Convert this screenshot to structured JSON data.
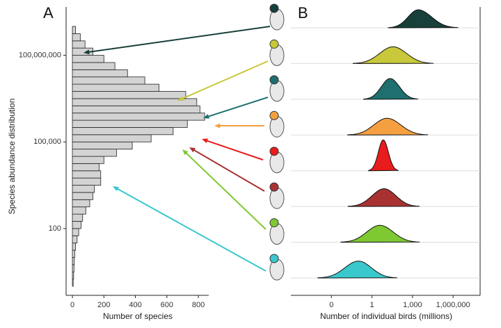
{
  "panels": [
    {
      "label": "A",
      "chart_data": {
        "type": "histogram",
        "orientation": "horizontal",
        "y_scale": "log",
        "x_label": "Number of species",
        "y_label": "Species abundance distribution",
        "bins": [
          1,
          1.78,
          3.16,
          5.62,
          10,
          17.8,
          31.6,
          56.2,
          100,
          178,
          316,
          562,
          1000,
          1780,
          3160,
          5620,
          10000,
          17800,
          31600,
          56200,
          100000,
          178000,
          316000,
          562000,
          1000000,
          1780000,
          3160000,
          5620000,
          10000000,
          17800000,
          31600000,
          56200000,
          100000000,
          178000000,
          316000000,
          562000000,
          1000000000
        ],
        "values": [
          5,
          8,
          10,
          12,
          15,
          20,
          30,
          40,
          55,
          65,
          85,
          110,
          130,
          140,
          180,
          180,
          170,
          200,
          280,
          380,
          500,
          640,
          730,
          840,
          810,
          790,
          720,
          550,
          460,
          350,
          270,
          200,
          130,
          80,
          50,
          20
        ],
        "color": "#d3d3d3",
        "xlim": [
          -40,
          866
        ],
        "xticks": [
          0,
          200,
          400,
          600,
          800
        ],
        "ylim": [
          1,
          1000000000
        ],
        "yticks": [
          100,
          {
            "value": 100000,
            "label": "100,000"
          },
          {
            "value": 100000000,
            "label": "100,000,000"
          }
        ]
      }
    },
    {
      "label": "B",
      "chart_data": {
        "type": "ridgeline",
        "x_scale": "log",
        "x_label": "Number of individual birds (millions)",
        "ridges": [
          {
            "color": "#17403a",
            "min": 16,
            "mode": 2600,
            "max": 2400000
          },
          {
            "color": "#c8c83a",
            "min": 0.04,
            "mode": 36,
            "max": 36000
          },
          {
            "color": "#1f6f6f",
            "min": 0.24,
            "mode": 22,
            "max": 2600
          },
          {
            "color": "#f5a040",
            "min": 0.016,
            "mode": 13,
            "max": 14000
          },
          {
            "color": "#e81c1c",
            "min": 0.56,
            "mode": 6.8,
            "max": 93
          },
          {
            "color": "#a83232",
            "min": 0.017,
            "mode": 7.8,
            "max": 3400
          },
          {
            "color": "#7ec832",
            "min": 0.005,
            "mode": 3.8,
            "max": 3400
          },
          {
            "color": "#3ac8cc",
            "min": 0.0001,
            "mode": 0.1,
            "max": 74
          }
        ],
        "xlim": [
          1e-06,
          100000000
        ],
        "xticks": [
          {
            "value": 0.001,
            "label": "0"
          },
          1,
          {
            "value": 1000,
            "label": "1,000"
          },
          {
            "value": 1000000,
            "label": "1,000,000"
          }
        ]
      }
    }
  ]
}
